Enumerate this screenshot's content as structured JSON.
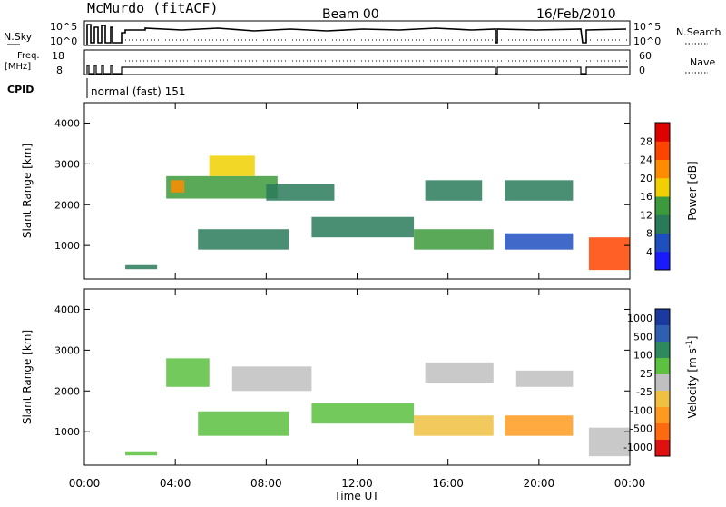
{
  "header": {
    "station": "McMurdo (fitACF)",
    "beam": "Beam 00",
    "date": "16/Feb/2010",
    "cpid_label": "CPID",
    "cpid_value": "normal (fast) 151"
  },
  "aux_panels": {
    "nsky": {
      "label": "N.Sky",
      "ticks": [
        "10^5",
        "10^0"
      ],
      "right_ticks": [
        "10^5",
        "10^0"
      ],
      "right_label": "N.Search"
    },
    "freq": {
      "label_line1": "Freq.",
      "label_line2": "[MHz]",
      "ticks": [
        "18",
        "8"
      ],
      "right_ticks": [
        "60",
        "0"
      ],
      "right_label": "Nave"
    }
  },
  "time_axis": {
    "label": "Time UT",
    "ticks": [
      "00:00",
      "04:00",
      "08:00",
      "12:00",
      "16:00",
      "20:00",
      "00:00"
    ],
    "hours": [
      0,
      4,
      8,
      12,
      16,
      20,
      24
    ]
  },
  "colors": {
    "power": [
      "#1a1aff",
      "#1f4fbf",
      "#2a7a5a",
      "#3c9a3c",
      "#f0d000",
      "#ff8c00",
      "#ff4400",
      "#e00000"
    ],
    "velocity": [
      "#1a3a9f",
      "#2f5fb0",
      "#2e8a5e",
      "#5cc040",
      "#c0c0c0",
      "#f0c040",
      "#ff9a20",
      "#ff6a10",
      "#e01010"
    ]
  },
  "chart_data": [
    {
      "type": "heatmap",
      "title": "",
      "xlabel": "",
      "ylabel": "Slant Range [km]",
      "xlim": [
        0,
        24
      ],
      "ylim": [
        180,
        4500
      ],
      "yticks": [
        1000,
        2000,
        3000,
        4000
      ],
      "colorbar": {
        "label": "Power [dB]",
        "ticks": [
          "4",
          "8",
          "12",
          "16",
          "20",
          "24",
          "28"
        ],
        "min": 0,
        "max": 32
      },
      "regions": [
        {
          "t0": 1.8,
          "t1": 3.2,
          "r0": 420,
          "r1": 520,
          "v": 8
        },
        {
          "t0": 3.6,
          "t1": 8.5,
          "r0": 2150,
          "r1": 2700,
          "v": 14
        },
        {
          "t0": 3.8,
          "t1": 4.4,
          "r0": 2300,
          "r1": 2600,
          "v": 22
        },
        {
          "t0": 5.5,
          "t1": 7.5,
          "r0": 2700,
          "r1": 3200,
          "v": 16
        },
        {
          "t0": 8,
          "t1": 11,
          "r0": 2100,
          "r1": 2500,
          "v": 9
        },
        {
          "t0": 5,
          "t1": 9,
          "r0": 900,
          "r1": 1400,
          "v": 11
        },
        {
          "t0": 10,
          "t1": 14.5,
          "r0": 1200,
          "r1": 1700,
          "v": 10
        },
        {
          "t0": 14.5,
          "t1": 18,
          "r0": 900,
          "r1": 1400,
          "v": 13
        },
        {
          "t0": 15,
          "t1": 17.5,
          "r0": 2100,
          "r1": 2600,
          "v": 8
        },
        {
          "t0": 18.5,
          "t1": 21.5,
          "r0": 2100,
          "r1": 2600,
          "v": 8
        },
        {
          "t0": 18.5,
          "t1": 21.5,
          "r0": 900,
          "r1": 1300,
          "v": 7
        },
        {
          "t0": 22.2,
          "t1": 24,
          "r0": 400,
          "r1": 1200,
          "v": 24
        }
      ]
    },
    {
      "type": "heatmap",
      "title": "",
      "xlabel": "Time UT",
      "ylabel": "Slant Range [km]",
      "xlim": [
        0,
        24
      ],
      "ylim": [
        180,
        4500
      ],
      "yticks": [
        1000,
        2000,
        3000,
        4000
      ],
      "colorbar": {
        "label": "Velocity [m s^-1]",
        "ticks": [
          "1000",
          "500",
          "100",
          "25",
          "-25",
          "-100",
          "-500",
          "-1000"
        ],
        "min": -1000,
        "max": 1000
      },
      "regions": [
        {
          "t0": 1.8,
          "t1": 3.2,
          "r0": 420,
          "r1": 520,
          "v": 150
        },
        {
          "t0": 3.6,
          "t1": 5.5,
          "r0": 2100,
          "r1": 2800,
          "v": 300
        },
        {
          "t0": 6.5,
          "t1": 10,
          "r0": 2000,
          "r1": 2600,
          "v": 0
        },
        {
          "t0": 5,
          "t1": 9,
          "r0": 900,
          "r1": 1500,
          "v": 200
        },
        {
          "t0": 10,
          "t1": 14.5,
          "r0": 1200,
          "r1": 1700,
          "v": 150
        },
        {
          "t0": 14.5,
          "t1": 18,
          "r0": 900,
          "r1": 1400,
          "v": -200
        },
        {
          "t0": 15,
          "t1": 18,
          "r0": 2200,
          "r1": 2700,
          "v": 0
        },
        {
          "t0": 18.5,
          "t1": 21.5,
          "r0": 900,
          "r1": 1400,
          "v": -400
        },
        {
          "t0": 19,
          "t1": 21.5,
          "r0": 2100,
          "r1": 2500,
          "v": 0
        },
        {
          "t0": 22.2,
          "t1": 24,
          "r0": 400,
          "r1": 1100,
          "v": 80
        }
      ]
    }
  ]
}
